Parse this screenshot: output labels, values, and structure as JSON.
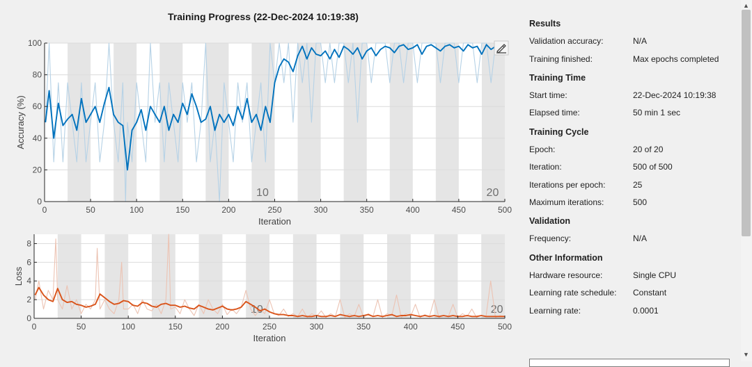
{
  "title": "Training Progress (22-Dec-2024 10:19:38)",
  "colors": {
    "accuracy_raw": "#b6d2e6",
    "accuracy_smooth": "#0072bd",
    "loss_raw": "#ecc3b3",
    "loss_smooth": "#d95319",
    "epoch_shade": "#e5e5e5",
    "grid": "#dcdcdc"
  },
  "chart_data": [
    {
      "type": "line",
      "xlabel": "Iteration",
      "ylabel": "Accuracy (%)",
      "xlim": [
        0,
        500
      ],
      "ylim": [
        0,
        100
      ],
      "xticks": [
        0,
        50,
        100,
        150,
        200,
        250,
        300,
        350,
        400,
        450,
        500
      ],
      "yticks": [
        0,
        20,
        40,
        60,
        80,
        100
      ],
      "grid": true,
      "epoch_labels": [
        {
          "x": 230,
          "text": "10"
        },
        {
          "x": 480,
          "text": "20"
        }
      ],
      "series": [
        {
          "role": "raw",
          "x": [
            1,
            5,
            10,
            15,
            20,
            25,
            30,
            35,
            40,
            45,
            50,
            55,
            60,
            65,
            70,
            75,
            80,
            85,
            88,
            90,
            95,
            100,
            105,
            110,
            115,
            120,
            125,
            130,
            135,
            140,
            145,
            150,
            155,
            160,
            165,
            170,
            175,
            180,
            185,
            190,
            195,
            200,
            205,
            210,
            215,
            220,
            225,
            230,
            235,
            240,
            245,
            250,
            255,
            260,
            265,
            270,
            275,
            280,
            285,
            290,
            295,
            300,
            305,
            310,
            315,
            320,
            325,
            330,
            335,
            340,
            345,
            350,
            355,
            360,
            365,
            370,
            375,
            380,
            385,
            390,
            395,
            400,
            405,
            410,
            415,
            420,
            425,
            430,
            435,
            440,
            445,
            450,
            455,
            460,
            465,
            470,
            475,
            480,
            485,
            490,
            495
          ],
          "y": [
            50,
            100,
            25,
            75,
            25,
            75,
            50,
            25,
            75,
            25,
            50,
            75,
            25,
            50,
            100,
            50,
            25,
            75,
            0,
            50,
            25,
            75,
            50,
            25,
            100,
            50,
            75,
            25,
            75,
            50,
            25,
            75,
            50,
            75,
            25,
            50,
            100,
            25,
            50,
            0,
            75,
            50,
            25,
            75,
            50,
            75,
            25,
            50,
            75,
            25,
            100,
            75,
            100,
            75,
            100,
            50,
            100,
            75,
            100,
            50,
            100,
            100,
            75,
            100,
            75,
            100,
            100,
            75,
            100,
            50,
            100,
            100,
            75,
            100,
            100,
            100,
            75,
            100,
            100,
            75,
            100,
            100,
            75,
            100,
            100,
            100,
            100,
            75,
            100,
            100,
            100,
            75,
            100,
            100,
            100,
            75,
            100,
            100,
            75,
            100,
            100
          ]
        },
        {
          "role": "smoothed",
          "x": [
            1,
            5,
            10,
            15,
            20,
            25,
            30,
            35,
            40,
            45,
            50,
            55,
            60,
            65,
            70,
            75,
            80,
            85,
            90,
            95,
            100,
            105,
            110,
            115,
            120,
            125,
            130,
            135,
            140,
            145,
            150,
            155,
            160,
            165,
            170,
            175,
            180,
            185,
            190,
            195,
            200,
            205,
            210,
            215,
            220,
            225,
            230,
            235,
            240,
            245,
            250,
            255,
            260,
            265,
            270,
            275,
            280,
            285,
            290,
            295,
            300,
            305,
            310,
            315,
            320,
            325,
            330,
            335,
            340,
            345,
            350,
            355,
            360,
            365,
            370,
            375,
            380,
            385,
            390,
            395,
            400,
            405,
            410,
            415,
            420,
            425,
            430,
            435,
            440,
            445,
            450,
            455,
            460,
            465,
            470,
            475,
            480,
            485,
            490,
            495
          ],
          "y": [
            50,
            70,
            40,
            62,
            48,
            52,
            55,
            45,
            65,
            50,
            55,
            60,
            50,
            62,
            72,
            55,
            50,
            48,
            20,
            45,
            50,
            58,
            45,
            60,
            55,
            50,
            60,
            45,
            55,
            50,
            62,
            55,
            68,
            60,
            50,
            52,
            60,
            45,
            55,
            50,
            55,
            48,
            60,
            52,
            65,
            50,
            55,
            45,
            60,
            50,
            75,
            85,
            90,
            88,
            82,
            92,
            98,
            90,
            97,
            93,
            92,
            95,
            90,
            96,
            91,
            98,
            96,
            93,
            97,
            90,
            95,
            97,
            92,
            96,
            98,
            97,
            94,
            98,
            99,
            96,
            97,
            99,
            93,
            98,
            99,
            97,
            95,
            98,
            99,
            97,
            98,
            95,
            99,
            97,
            98,
            93,
            99,
            96,
            98,
            97
          ]
        }
      ]
    },
    {
      "type": "line",
      "xlabel": "Iteration",
      "ylabel": "Loss",
      "xlim": [
        0,
        500
      ],
      "ylim": [
        0,
        9
      ],
      "xticks": [
        0,
        50,
        100,
        150,
        200,
        250,
        300,
        350,
        400,
        450,
        500
      ],
      "yticks": [
        0,
        2,
        4,
        6,
        8
      ],
      "grid": true,
      "epoch_labels": [
        {
          "x": 230,
          "text": "10"
        },
        {
          "x": 485,
          "text": "20"
        }
      ],
      "series": [
        {
          "role": "raw",
          "x": [
            1,
            5,
            10,
            15,
            20,
            23,
            25,
            30,
            35,
            40,
            45,
            50,
            55,
            60,
            65,
            67,
            70,
            75,
            80,
            85,
            90,
            93,
            95,
            100,
            105,
            110,
            115,
            120,
            125,
            130,
            135,
            140,
            143,
            145,
            150,
            155,
            160,
            165,
            170,
            175,
            180,
            185,
            190,
            195,
            200,
            205,
            210,
            215,
            220,
            225,
            230,
            235,
            240,
            245,
            250,
            255,
            260,
            265,
            270,
            275,
            280,
            285,
            290,
            295,
            300,
            305,
            310,
            315,
            320,
            325,
            330,
            335,
            340,
            345,
            350,
            355,
            360,
            365,
            370,
            375,
            380,
            385,
            390,
            395,
            400,
            405,
            410,
            415,
            420,
            425,
            430,
            435,
            440,
            445,
            450,
            455,
            460,
            465,
            470,
            475,
            480,
            485,
            490,
            495,
            500
          ],
          "y": [
            2,
            4,
            1,
            3,
            2,
            8.5,
            2,
            1,
            3.5,
            1,
            2,
            0.5,
            1.5,
            1,
            2,
            7.5,
            1,
            2,
            1,
            0.5,
            2,
            6,
            1,
            1,
            1.5,
            0.5,
            2,
            1,
            0.8,
            1.5,
            0.5,
            2,
            9,
            1,
            1.2,
            0.5,
            2,
            1,
            0.3,
            1.5,
            0.5,
            2,
            1,
            0.5,
            1.5,
            0.4,
            1,
            0.5,
            1.2,
            3,
            1,
            0.3,
            1,
            0.5,
            2,
            0.5,
            0.3,
            1,
            0.2,
            0.5,
            0.2,
            1,
            0.1,
            0.5,
            0.2,
            0.8,
            0.1,
            0.5,
            0.2,
            2,
            0.1,
            0.5,
            0.2,
            1.5,
            0.1,
            0.5,
            0.2,
            2,
            0.1,
            0.5,
            0.3,
            2.5,
            0.1,
            0.5,
            0.2,
            1.5,
            0.1,
            0.4,
            0.2,
            2,
            0.1,
            0.3,
            0.2,
            1.5,
            0.1,
            0.5,
            0.2,
            1,
            0.1,
            0.3,
            0.2,
            4,
            0.1,
            0.3,
            0.2
          ]
        },
        {
          "role": "smoothed",
          "x": [
            1,
            5,
            10,
            15,
            20,
            25,
            30,
            35,
            40,
            45,
            50,
            55,
            60,
            65,
            70,
            75,
            80,
            85,
            90,
            95,
            100,
            105,
            110,
            115,
            120,
            125,
            130,
            135,
            140,
            145,
            150,
            155,
            160,
            165,
            170,
            175,
            180,
            185,
            190,
            195,
            200,
            205,
            210,
            215,
            220,
            225,
            230,
            235,
            240,
            245,
            250,
            255,
            260,
            265,
            270,
            275,
            280,
            285,
            290,
            295,
            300,
            305,
            310,
            315,
            320,
            325,
            330,
            335,
            340,
            345,
            350,
            355,
            360,
            365,
            370,
            375,
            380,
            385,
            390,
            395,
            400,
            405,
            410,
            415,
            420,
            425,
            430,
            435,
            440,
            445,
            450,
            455,
            460,
            465,
            470,
            475,
            480,
            485,
            490,
            495,
            500
          ],
          "y": [
            2.5,
            3.3,
            2.5,
            2.0,
            1.8,
            3.2,
            2.0,
            1.7,
            1.8,
            1.5,
            1.4,
            1.2,
            1.3,
            1.5,
            2.6,
            2.2,
            1.8,
            1.5,
            1.6,
            1.9,
            1.8,
            1.4,
            1.3,
            1.7,
            1.6,
            1.3,
            1.2,
            1.5,
            1.6,
            1.4,
            1.4,
            1.2,
            1.3,
            1.1,
            1.0,
            1.4,
            1.2,
            1.0,
            0.9,
            1.1,
            1.3,
            1.0,
            0.9,
            1.0,
            1.2,
            1.8,
            1.5,
            1.2,
            0.8,
            1.0,
            0.7,
            0.5,
            0.4,
            0.4,
            0.3,
            0.3,
            0.2,
            0.3,
            0.2,
            0.2,
            0.3,
            0.2,
            0.2,
            0.3,
            0.2,
            0.4,
            0.3,
            0.2,
            0.3,
            0.2,
            0.3,
            0.4,
            0.2,
            0.3,
            0.2,
            0.3,
            0.4,
            0.2,
            0.3,
            0.3,
            0.4,
            0.3,
            0.2,
            0.3,
            0.2,
            0.3,
            0.2,
            0.3,
            0.2,
            0.3,
            0.2,
            0.2,
            0.3,
            0.2,
            0.2,
            0.3,
            0.2,
            0.2,
            0.2,
            0.2,
            0.2
          ]
        }
      ]
    }
  ],
  "panel": {
    "results": {
      "heading": "Results",
      "rows": [
        {
          "label": "Validation accuracy:",
          "value": "N/A"
        },
        {
          "label": "Training finished:",
          "value": "Max epochs completed"
        }
      ]
    },
    "training_time": {
      "heading": "Training Time",
      "rows": [
        {
          "label": "Start time:",
          "value": "22-Dec-2024 10:19:38"
        },
        {
          "label": "Elapsed time:",
          "value": "50 min 1 sec"
        }
      ]
    },
    "training_cycle": {
      "heading": "Training Cycle",
      "rows": [
        {
          "label": "Epoch:",
          "value": "20 of 20"
        },
        {
          "label": "Iteration:",
          "value": "500 of 500"
        },
        {
          "label": "Iterations per epoch:",
          "value": "25"
        },
        {
          "label": "Maximum iterations:",
          "value": "500"
        }
      ]
    },
    "validation": {
      "heading": "Validation",
      "rows": [
        {
          "label": "Frequency:",
          "value": "N/A"
        }
      ]
    },
    "other": {
      "heading": "Other Information",
      "rows": [
        {
          "label": "Hardware resource:",
          "value": "Single CPU"
        },
        {
          "label": "Learning rate schedule:",
          "value": "Constant"
        },
        {
          "label": "Learning rate:",
          "value": "0.0001"
        }
      ]
    }
  },
  "icons": {
    "export": "export-plot-icon",
    "scroll_up": "scroll-up-icon",
    "scroll_down": "scroll-down-icon"
  }
}
